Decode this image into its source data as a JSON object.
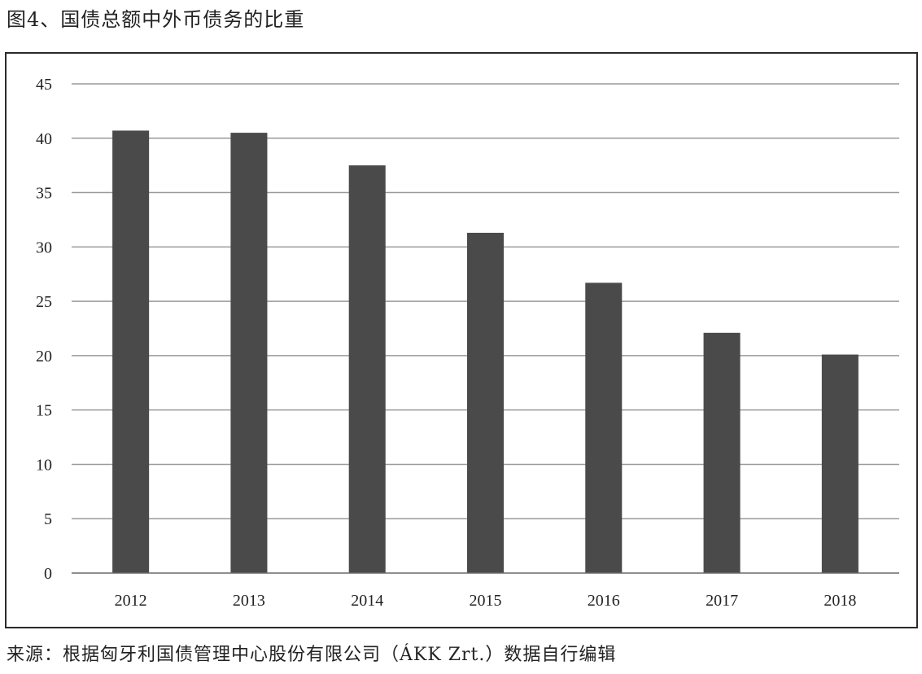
{
  "figure": {
    "title": "图4、国债总额中外币债务的比重"
  },
  "source": {
    "text": "来源：根据匈牙利国债管理中心股份有限公司（ÁKK Zrt.）数据自行编辑"
  },
  "colors": {
    "bar": "#4a4a4a",
    "grid": "#9a9a9a",
    "axis": "#6a6a6a",
    "frame": "#2a2a2a",
    "text": "#222222"
  },
  "chart_data": {
    "type": "bar",
    "title": "",
    "xlabel": "",
    "ylabel": "",
    "categories": [
      "2012",
      "2013",
      "2014",
      "2015",
      "2016",
      "2017",
      "2018"
    ],
    "values": [
      40.7,
      40.5,
      37.5,
      31.3,
      26.7,
      22.1,
      20.1
    ],
    "ylim": [
      0,
      45
    ],
    "yticks": [
      0,
      5,
      10,
      15,
      20,
      25,
      30,
      35,
      40,
      45
    ],
    "ytick_labels": [
      "0",
      "5",
      "10",
      "15",
      "20",
      "25",
      "30",
      "35",
      "40",
      "45"
    ],
    "grid": true,
    "legend": "none"
  }
}
